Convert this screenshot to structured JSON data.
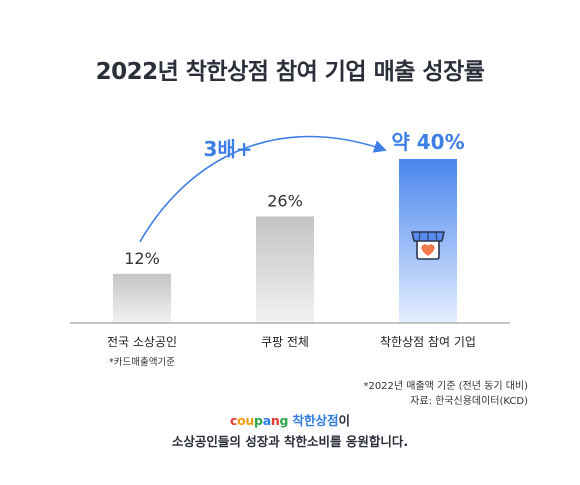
{
  "title": "2022년 착한상점 참여 기업 매출 성장률",
  "chart_data": {
    "type": "bar",
    "categories": [
      "전국 소상공인",
      "쿠팡 전체",
      "착한상점 참여 기업"
    ],
    "category_notes": [
      "*카드매출액기준",
      "",
      ""
    ],
    "values": [
      12,
      26,
      40
    ],
    "value_labels": [
      "12%",
      "26%",
      "약 40%"
    ],
    "ylim": [
      0,
      45
    ],
    "annotation": "3배+",
    "highlight_index": 2,
    "colors": {
      "bar": "#c9c9c9",
      "highlight": "#4a86f0",
      "arrow": "#3d7fe6",
      "axis": "#8c8c8c"
    }
  },
  "footnotes": [
    "*2022년 매출액 기준 (전년 동기 대비)",
    "자료: 한국신용데이터(KCD)"
  ],
  "brand": {
    "logo_letters": [
      "c",
      "o",
      "u",
      "p",
      "a",
      "n",
      "g"
    ],
    "tag": "착한상점",
    "suffix": "이"
  },
  "slogan": "소상공인들의 성장과 착한소비를 응원합니다.",
  "icon": "storefront-heart-icon"
}
